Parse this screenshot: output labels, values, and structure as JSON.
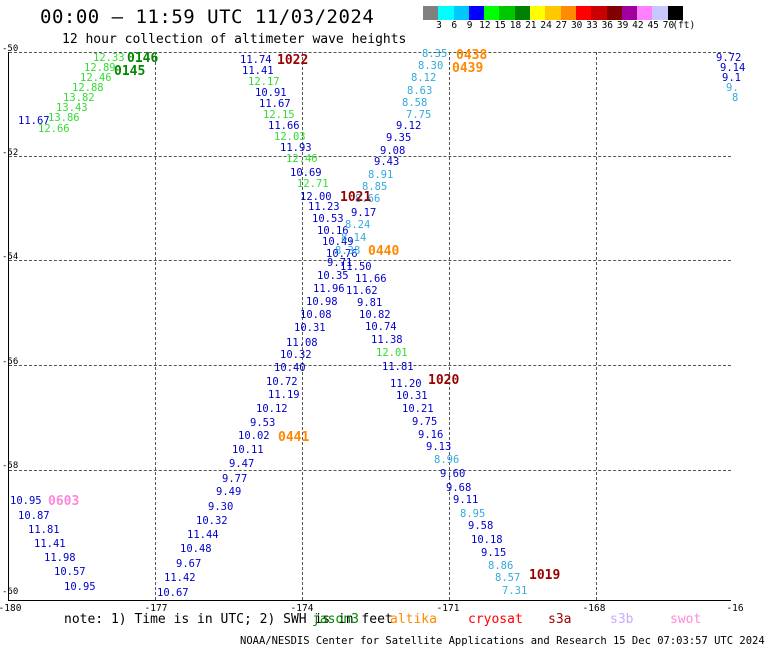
{
  "title": "00:00 – 11:59 UTC 11/03/2024",
  "subtitle": "12 hour collection of altimeter wave heights",
  "colorbar": {
    "unit": "(ft)",
    "ticks": [
      "3",
      "6",
      "9",
      "12",
      "15",
      "18",
      "21",
      "24",
      "27",
      "30",
      "33",
      "36",
      "39",
      "42",
      "45",
      "70"
    ],
    "colors": [
      "#808080",
      "#00ffff",
      "#00c8ff",
      "#0000ff",
      "#00ff00",
      "#00c800",
      "#008000",
      "#ffff00",
      "#ffc800",
      "#ff8c00",
      "#ff0000",
      "#c80000",
      "#800000",
      "#a000a0",
      "#ff80ff",
      "#c8c8ff",
      "#000000"
    ]
  },
  "axes": {
    "lat_labels": [
      "-50",
      "-52",
      "-54",
      "-56",
      "-58",
      "-60"
    ],
    "lon_labels": [
      "-180",
      "-177",
      "-174",
      "-171",
      "-168",
      "-16"
    ]
  },
  "wave_points": [
    {
      "v": "11.74",
      "c": "#0000cc"
    },
    {
      "v": "11.41",
      "c": "#0000cc"
    },
    {
      "v": "12.17",
      "c": "#33dd33"
    },
    {
      "v": "10.91",
      "c": "#0000cc"
    },
    {
      "v": "11.67",
      "c": "#0000cc"
    },
    {
      "v": "12.15",
      "c": "#33dd33"
    },
    {
      "v": "11.66",
      "c": "#0000cc"
    },
    {
      "v": "12.03",
      "c": "#33dd33"
    },
    {
      "v": "11.93",
      "c": "#0000cc"
    },
    {
      "v": "12.46",
      "c": "#33dd33"
    },
    {
      "v": "10.69",
      "c": "#0000cc"
    },
    {
      "v": "12.71",
      "c": "#33dd33"
    },
    {
      "v": "12.00",
      "c": "#0000cc"
    },
    {
      "v": "11.23",
      "c": "#0000cc"
    },
    {
      "v": "10.53",
      "c": "#0000cc"
    },
    {
      "v": "10.16",
      "c": "#0000cc"
    },
    {
      "v": "10.49",
      "c": "#0000cc"
    },
    {
      "v": "10.76",
      "c": "#0000cc"
    },
    {
      "v": "9.71",
      "c": "#0000cc"
    },
    {
      "v": "10.35",
      "c": "#0000cc"
    },
    {
      "v": "11.96",
      "c": "#0000cc"
    },
    {
      "v": "10.98",
      "c": "#0000cc"
    },
    {
      "v": "10.08",
      "c": "#0000cc"
    },
    {
      "v": "10.31",
      "c": "#0000cc"
    },
    {
      "v": "11.08",
      "c": "#0000cc"
    },
    {
      "v": "10.32",
      "c": "#0000cc"
    },
    {
      "v": "10.40",
      "c": "#0000cc"
    },
    {
      "v": "10.72",
      "c": "#0000cc"
    },
    {
      "v": "11.19",
      "c": "#0000cc"
    },
    {
      "v": "10.12",
      "c": "#0000cc"
    },
    {
      "v": "9.53",
      "c": "#0000cc"
    },
    {
      "v": "10.02",
      "c": "#0000cc"
    },
    {
      "v": "10.11",
      "c": "#0000cc"
    },
    {
      "v": "9.47",
      "c": "#0000cc"
    },
    {
      "v": "9.77",
      "c": "#0000cc"
    },
    {
      "v": "9.49",
      "c": "#0000cc"
    },
    {
      "v": "9.30",
      "c": "#0000cc"
    },
    {
      "v": "10.32",
      "c": "#0000cc"
    },
    {
      "v": "11.44",
      "c": "#0000cc"
    },
    {
      "v": "10.48",
      "c": "#0000cc"
    },
    {
      "v": "9.67",
      "c": "#0000cc"
    },
    {
      "v": "11.42",
      "c": "#0000cc"
    },
    {
      "v": "10.67",
      "c": "#0000cc"
    },
    {
      "v": "8.35",
      "c": "#33aadd"
    },
    {
      "v": "8.30",
      "c": "#33aadd"
    },
    {
      "v": "8.12",
      "c": "#33aadd"
    },
    {
      "v": "8.63",
      "c": "#33aadd"
    },
    {
      "v": "8.58",
      "c": "#33aadd"
    },
    {
      "v": "7.75",
      "c": "#33aadd"
    },
    {
      "v": "9.12",
      "c": "#0000cc"
    },
    {
      "v": "9.35",
      "c": "#0000cc"
    },
    {
      "v": "9.08",
      "c": "#0000cc"
    },
    {
      "v": "9.43",
      "c": "#0000cc"
    },
    {
      "v": "8.91",
      "c": "#33aadd"
    },
    {
      "v": "8.85",
      "c": "#33aadd"
    },
    {
      "v": "8.66",
      "c": "#33aadd"
    },
    {
      "v": "9.17",
      "c": "#0000cc"
    },
    {
      "v": "8.24",
      "c": "#33aadd"
    },
    {
      "v": "8.14",
      "c": "#33aadd"
    },
    {
      "v": "8.38",
      "c": "#33aadd"
    },
    {
      "v": "11.50",
      "c": "#0000cc"
    },
    {
      "v": "11.66",
      "c": "#0000cc"
    },
    {
      "v": "11.62",
      "c": "#0000cc"
    },
    {
      "v": "9.81",
      "c": "#0000cc"
    },
    {
      "v": "10.82",
      "c": "#0000cc"
    },
    {
      "v": "10.74",
      "c": "#0000cc"
    },
    {
      "v": "11.38",
      "c": "#0000cc"
    },
    {
      "v": "12.01",
      "c": "#33dd33"
    },
    {
      "v": "11.81",
      "c": "#0000cc"
    },
    {
      "v": "11.20",
      "c": "#0000cc"
    },
    {
      "v": "10.31",
      "c": "#0000cc"
    },
    {
      "v": "10.21",
      "c": "#0000cc"
    },
    {
      "v": "9.75",
      "c": "#0000cc"
    },
    {
      "v": "9.16",
      "c": "#0000cc"
    },
    {
      "v": "9.13",
      "c": "#0000cc"
    },
    {
      "v": "8.96",
      "c": "#33aadd"
    },
    {
      "v": "9.60",
      "c": "#0000cc"
    },
    {
      "v": "9.68",
      "c": "#0000cc"
    },
    {
      "v": "9.11",
      "c": "#0000cc"
    },
    {
      "v": "8.95",
      "c": "#33aadd"
    },
    {
      "v": "9.58",
      "c": "#0000cc"
    },
    {
      "v": "10.18",
      "c": "#0000cc"
    },
    {
      "v": "9.15",
      "c": "#0000cc"
    },
    {
      "v": "8.86",
      "c": "#33aadd"
    },
    {
      "v": "8.57",
      "c": "#33aadd"
    },
    {
      "v": "7.31",
      "c": "#33aadd"
    },
    {
      "v": "12.33",
      "c": "#33dd33"
    },
    {
      "v": "12.89",
      "c": "#33dd33"
    },
    {
      "v": "12.46",
      "c": "#33dd33"
    },
    {
      "v": "12.88",
      "c": "#33dd33"
    },
    {
      "v": "13.82",
      "c": "#33dd33"
    },
    {
      "v": "13.43",
      "c": "#33dd33"
    },
    {
      "v": "13.86",
      "c": "#33dd33"
    },
    {
      "v": "12.66",
      "c": "#33dd33"
    },
    {
      "v": "11.67",
      "c": "#0000cc"
    },
    {
      "v": "10.95",
      "c": "#0000cc"
    },
    {
      "v": "10.87",
      "c": "#0000cc"
    },
    {
      "v": "11.81",
      "c": "#0000cc"
    },
    {
      "v": "11.41",
      "c": "#0000cc"
    },
    {
      "v": "11.98",
      "c": "#0000cc"
    },
    {
      "v": "10.57",
      "c": "#0000cc"
    },
    {
      "v": "10.95",
      "c": "#0000cc"
    },
    {
      "v": "9.72",
      "c": "#0000cc"
    },
    {
      "v": "9.14",
      "c": "#0000cc"
    },
    {
      "v": "9.1",
      "c": "#0000cc"
    },
    {
      "v": "9.",
      "c": "#33aadd"
    },
    {
      "v": "8",
      "c": "#33aadd"
    }
  ],
  "pass_times": [
    {
      "v": "1022",
      "c": "#990000"
    },
    {
      "v": "1021",
      "c": "#990000"
    },
    {
      "v": "1020",
      "c": "#990000"
    },
    {
      "v": "1019",
      "c": "#990000"
    },
    {
      "v": "0438",
      "c": "#ff8800"
    },
    {
      "v": "0439",
      "c": "#ff8800"
    },
    {
      "v": "0440",
      "c": "#ff8800"
    },
    {
      "v": "0441",
      "c": "#ff8800"
    },
    {
      "v": "0146",
      "c": "#008800"
    },
    {
      "v": "0145",
      "c": "#008800"
    },
    {
      "v": "0603",
      "c": "#ff88dd"
    }
  ],
  "legend": {
    "note": "note:  1) Time is in UTC; 2) SWH is in feet",
    "satellites": [
      {
        "name": "jason3",
        "color": "#008800"
      },
      {
        "name": "altika",
        "color": "#ff8800"
      },
      {
        "name": "cryosat",
        "color": "#ff0000"
      },
      {
        "name": "s3a",
        "color": "#990000"
      },
      {
        "name": "s3b",
        "color": "#c8a8ff"
      },
      {
        "name": "swot",
        "color": "#ff88dd"
      }
    ]
  },
  "credit": "NOAA/NESDIS Center for Satellite Applications and Research   15 Dec 07:03:57 UTC 2024"
}
